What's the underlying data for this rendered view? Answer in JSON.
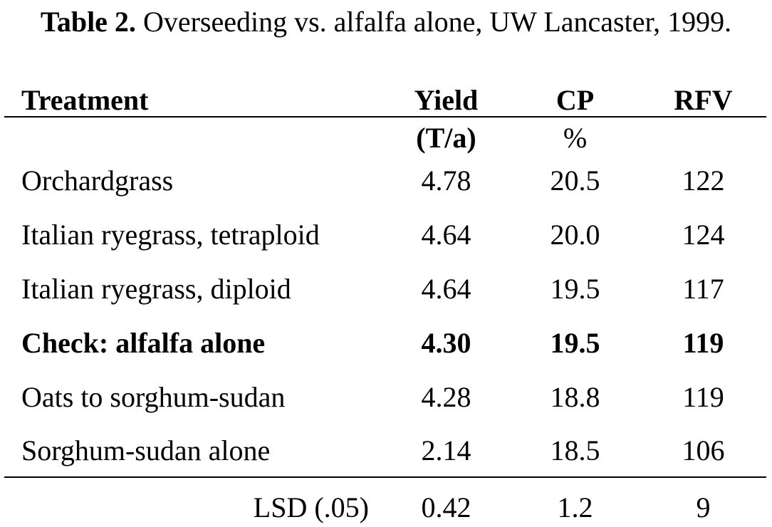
{
  "title": {
    "lead": "Table 2.",
    "text": "Overseeding vs. alfalfa alone, UW Lancaster, 1999."
  },
  "headers": {
    "treatment": "Treatment",
    "yield": "Yield",
    "cp": "CP",
    "rfv": "RFV"
  },
  "units": {
    "yield": "(T/a)",
    "cp": "%"
  },
  "rows": [
    {
      "treatment": "Orchardgrass",
      "yield": "4.78",
      "cp": "20.5",
      "rfv": "122"
    },
    {
      "treatment": "Italian ryegrass, tetraploid",
      "yield": "4.64",
      "cp": "20.0",
      "rfv": "124"
    },
    {
      "treatment": "Italian ryegrass, diploid",
      "yield": "4.64",
      "cp": "19.5",
      "rfv": "117"
    },
    {
      "treatment": "Check: alfalfa alone",
      "yield": "4.30",
      "cp": "19.5",
      "rfv": "119"
    },
    {
      "treatment": "Oats to sorghum-sudan",
      "yield": "4.28",
      "cp": "18.8",
      "rfv": "119"
    },
    {
      "treatment": "Sorghum-sudan alone",
      "yield": "2.14",
      "cp": "18.5",
      "rfv": "106"
    }
  ],
  "lsd": {
    "label": "LSD (.05)",
    "yield": "0.42",
    "cp": "1.2",
    "rfv": "9"
  }
}
